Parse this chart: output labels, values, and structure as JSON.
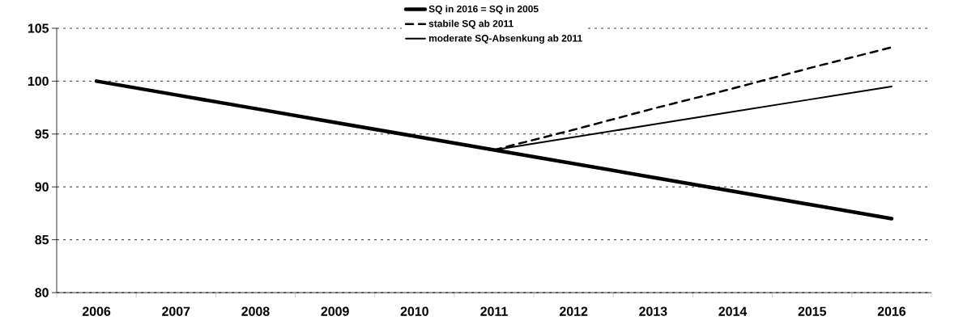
{
  "chart_data": {
    "type": "line",
    "categories": [
      "2006",
      "2007",
      "2008",
      "2009",
      "2010",
      "2011",
      "2012",
      "2013",
      "2014",
      "2015",
      "2016"
    ],
    "ylim": [
      80,
      105
    ],
    "yticks": [
      80,
      85,
      90,
      95,
      100,
      105
    ],
    "grid": "y",
    "legend": "top",
    "marker": "none",
    "series": [
      {
        "name": "SQ in 2016 = SQ in 2005",
        "color": "#000000",
        "line_style": "solid",
        "values": [
          100,
          98.7,
          97.4,
          96.1,
          94.8,
          93.5,
          92.2,
          90.9,
          89.6,
          88.3,
          87.0
        ]
      },
      {
        "name": "stabile SQ ab 2011",
        "color": "#000000",
        "line_style": "dashed",
        "values": [
          null,
          null,
          null,
          null,
          null,
          93.5,
          95.4,
          97.4,
          99.3,
          101.3,
          103.2
        ]
      },
      {
        "name": "moderate SQ-Absenkung ab 2011",
        "color": "#000000",
        "line_style": "solid",
        "values": [
          null,
          null,
          null,
          null,
          null,
          93.5,
          94.7,
          95.9,
          97.1,
          98.3,
          99.5
        ]
      }
    ]
  }
}
